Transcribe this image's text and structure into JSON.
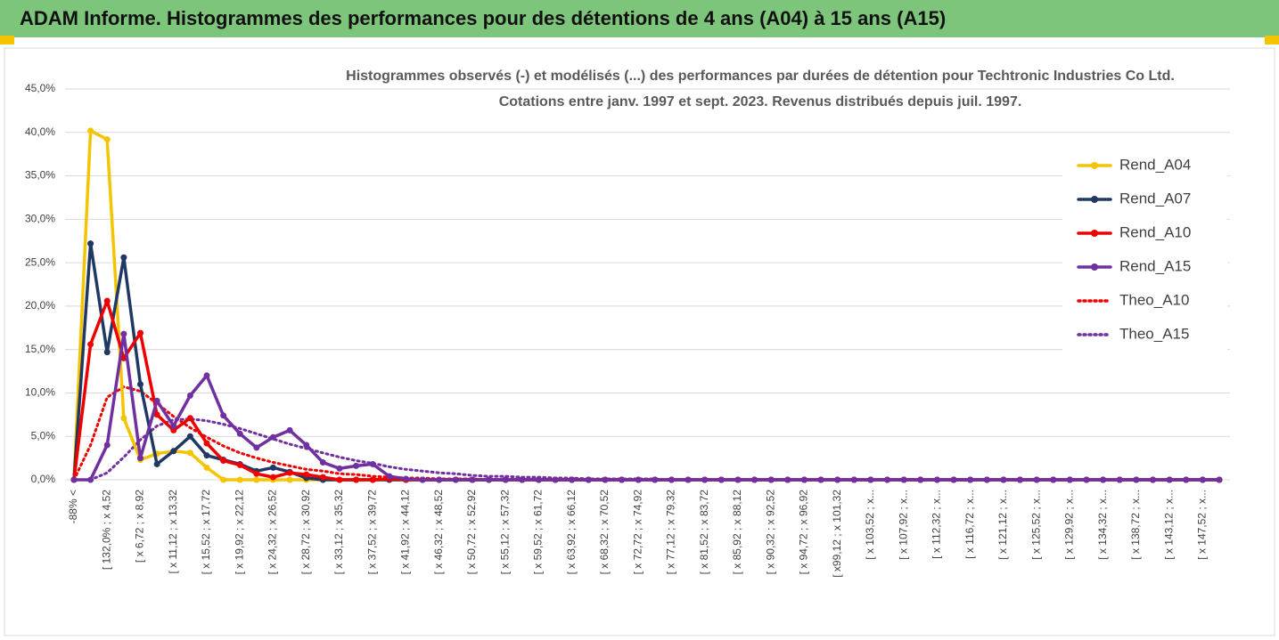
{
  "header": {
    "title": "ADAM Informe. Histogrammes des performances pour des détentions de 4 ans (A04) à 15 ans (A15)"
  },
  "chart_data": {
    "type": "line",
    "title": "Histogrammes observés (-) et modélisés (...)  des performances par durées de détention pour Techtronic Industries Co Ltd.",
    "subtitle": "Cotations entre janv. 1997 et sept. 2023. Revenus distribués depuis juil. 1997.",
    "categories": [
      "-88% <",
      null,
      "[ 132,0% ; x 4,52",
      null,
      "[ x 6,72 ; x 8,92",
      null,
      "[ x 11,12 ; x 13,32",
      null,
      "[ x 15,52 ; x 17,72",
      null,
      "[ x 19,92 ; x 22,12",
      null,
      "[ x 24,32 ; x 26,52",
      null,
      "[ x 28,72 ; x 30,92",
      null,
      "[ x 33,12 ; x 35,32",
      null,
      "[ x 37,52 ; x 39,72",
      null,
      "[ x 41,92 ; x 44,12",
      null,
      "[ x 46,32 ; x 48,52",
      null,
      "[ x 50,72 ; x 52,92",
      null,
      "[ x 55,12 ; x 57,32",
      null,
      "[ x 59,52 ; x 61,72",
      null,
      "[ x 63,92 ; x 66,12",
      null,
      "[ x 68,32 ; x 70,52",
      null,
      "[ x 72,72 ; x 74,92",
      null,
      "[ x 77,12 ; x 79,32",
      null,
      "[ x 81,52 ; x 83,72",
      null,
      "[ x 85,92 ; x 88,12",
      null,
      "[ x 90,32 ; x 92,52",
      null,
      "[ x 94,72 ; x 96,92",
      null,
      "[ x99,12 ; x 101,32",
      null,
      "[ x 103,52 ; x...",
      null,
      "[ x 107,92 ; x...",
      null,
      "[ x 112,32 ; x...",
      null,
      "[ x 116,72 ; x...",
      null,
      "[ x 121,12 ; x...",
      null,
      "[ x 125,52 ; x...",
      null,
      "[ x 129,92 ; x...",
      null,
      "[ x 134,32 ; x...",
      null,
      "[ x 138,72 ; x...",
      null,
      "[ x 143,12 ; x...",
      null,
      "[ x 147,52 ; x...",
      null
    ],
    "series": [
      {
        "name": "Rend_A04",
        "color": "#f5c400",
        "line_style": "solid",
        "values": [
          0,
          40.2,
          39.2,
          7.1,
          2.3,
          3.0,
          3.3,
          3.1,
          1.4,
          0,
          0,
          0,
          0,
          0,
          0,
          0,
          0,
          0,
          0,
          0,
          0,
          0,
          0,
          0,
          0,
          0,
          0,
          0,
          0,
          0,
          0,
          0,
          0,
          0,
          0,
          0,
          0,
          0,
          0,
          0,
          0,
          0,
          0,
          0,
          0,
          0,
          0,
          0,
          0,
          0,
          0,
          0,
          0,
          0,
          0,
          0,
          0,
          0,
          0,
          0,
          0,
          0,
          0,
          0,
          0,
          0,
          0,
          0,
          0,
          0
        ]
      },
      {
        "name": "Rend_A07",
        "color": "#203864",
        "line_style": "solid",
        "values": [
          0,
          27.2,
          14.7,
          25.6,
          11,
          1.8,
          3.3,
          5,
          2.8,
          2.3,
          1.8,
          1,
          1.4,
          0.9,
          0.2,
          0,
          0,
          0,
          0,
          0,
          0,
          0,
          0,
          0,
          0,
          0,
          0,
          0,
          0,
          0,
          0,
          0,
          0,
          0,
          0,
          0,
          0,
          0,
          0,
          0,
          0,
          0,
          0,
          0,
          0,
          0,
          0,
          0,
          0,
          0,
          0,
          0,
          0,
          0,
          0,
          0,
          0,
          0,
          0,
          0,
          0,
          0,
          0,
          0,
          0,
          0,
          0,
          0,
          0,
          0
        ]
      },
      {
        "name": "Rend_A10",
        "color": "#ee0000",
        "line_style": "solid",
        "values": [
          0,
          15.6,
          20.6,
          14,
          16.9,
          7.5,
          5.7,
          7.1,
          4.2,
          2.2,
          1.7,
          0.7,
          0.3,
          0.8,
          0.6,
          0.3,
          0,
          0,
          0,
          0.1,
          0,
          0,
          0,
          0,
          0,
          0,
          0,
          0,
          0,
          0,
          0,
          0,
          0,
          0,
          0,
          0,
          0,
          0,
          0,
          0,
          0,
          0,
          0,
          0,
          0,
          0,
          0,
          0,
          0,
          0,
          0,
          0,
          0,
          0,
          0,
          0,
          0,
          0,
          0,
          0,
          0,
          0,
          0,
          0,
          0,
          0,
          0,
          0,
          0,
          0
        ]
      },
      {
        "name": "Rend_A15",
        "color": "#7030a0",
        "line_style": "solid",
        "values": [
          0,
          0,
          4,
          16.8,
          2.5,
          9.1,
          6.2,
          9.7,
          12,
          7.4,
          5.3,
          3.7,
          4.9,
          5.7,
          4,
          2,
          1.3,
          1.6,
          1.8,
          0.4,
          0.1,
          0,
          0,
          0,
          0,
          0,
          0,
          0,
          0,
          0,
          0,
          0,
          0,
          0,
          0,
          0,
          0,
          0,
          0,
          0,
          0,
          0,
          0,
          0,
          0,
          0,
          0,
          0,
          0,
          0,
          0,
          0,
          0,
          0,
          0,
          0,
          0,
          0,
          0,
          0,
          0,
          0,
          0,
          0,
          0,
          0,
          0,
          0,
          0,
          0
        ]
      },
      {
        "name": "Theo_A10",
        "color": "#ee0000",
        "line_style": "dotted",
        "values": [
          0,
          4,
          9.5,
          10.7,
          10.2,
          8.8,
          7.3,
          6,
          4.9,
          3.9,
          3.1,
          2.5,
          2,
          1.6,
          1.2,
          1,
          0.7,
          0.6,
          0.4,
          0.3,
          0.2,
          0.2,
          0.1,
          0.1,
          0.1,
          0,
          0,
          0,
          0,
          0,
          0,
          0,
          0,
          0,
          0,
          0,
          0,
          0,
          0,
          0,
          0,
          0,
          0,
          0,
          0,
          0,
          0,
          0,
          0,
          0,
          0,
          0,
          0,
          0,
          0,
          0,
          0,
          0,
          0,
          0,
          0,
          0,
          0,
          0,
          0,
          0,
          0,
          0,
          0,
          0
        ]
      },
      {
        "name": "Theo_A15",
        "color": "#7030a0",
        "line_style": "dotted",
        "values": [
          0,
          0,
          0.8,
          2.6,
          4.6,
          6.2,
          6.9,
          7,
          6.8,
          6.4,
          5.9,
          5.3,
          4.7,
          4.1,
          3.6,
          3.1,
          2.6,
          2.2,
          1.9,
          1.5,
          1.2,
          1,
          0.8,
          0.7,
          0.5,
          0.4,
          0.4,
          0.3,
          0.3,
          0.2,
          0.2,
          0.1,
          0.1,
          0.1,
          0.1,
          0.1,
          0,
          0,
          0,
          0,
          0,
          0,
          0,
          0,
          0,
          0,
          0,
          0,
          0,
          0,
          0,
          0,
          0,
          0,
          0,
          0,
          0,
          0,
          0,
          0,
          0,
          0,
          0,
          0,
          0,
          0,
          0,
          0,
          0,
          0
        ]
      }
    ],
    "ylim": [
      0,
      45
    ],
    "yticks": [
      {
        "value": 0,
        "label": "0,0%"
      },
      {
        "value": 5,
        "label": "5,0%"
      },
      {
        "value": 10,
        "label": "10,0%"
      },
      {
        "value": 15,
        "label": "15,0%"
      },
      {
        "value": 20,
        "label": "20,0%"
      },
      {
        "value": 25,
        "label": "25,0%"
      },
      {
        "value": 30,
        "label": "30,0%"
      },
      {
        "value": 35,
        "label": "35,0%"
      },
      {
        "value": 40,
        "label": "40,0%"
      },
      {
        "value": 45,
        "label": "45,0%"
      }
    ],
    "grid": true,
    "legend": "right"
  }
}
